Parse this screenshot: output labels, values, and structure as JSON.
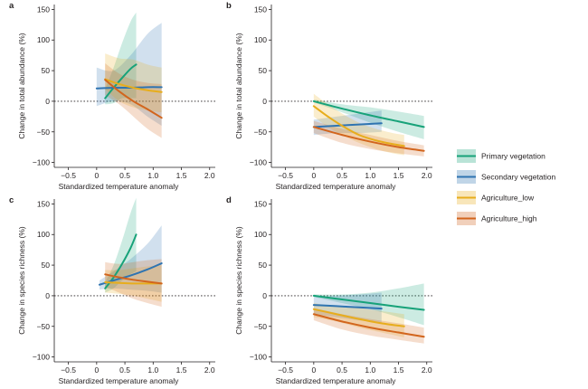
{
  "legend": {
    "items": [
      {
        "label": "Primary vegetation",
        "color": "#17a279"
      },
      {
        "label": "Secondary vegetation",
        "color": "#2f74b1"
      },
      {
        "label": "Agriculture_low",
        "color": "#e7ad1c"
      },
      {
        "label": "Agriculture_high",
        "color": "#d2651d"
      }
    ]
  },
  "chart_data": [
    {
      "panel": "a",
      "type": "line",
      "xlabel": "Standardized temperature anomaly",
      "ylabel": "Change in total abundance (%)",
      "xlim": [
        -0.75,
        2.1
      ],
      "ylim": [
        -108,
        158
      ],
      "xticks": [
        -0.5,
        0,
        0.5,
        1,
        1.5,
        2
      ],
      "xtick_labels": [
        "−0.5",
        "0",
        "0.5",
        "1.0",
        "1.5",
        "2.0"
      ],
      "yticks": [
        -100,
        -50,
        0,
        50,
        100,
        150
      ],
      "ytick_labels": [
        "−100",
        "−50",
        "0",
        "50",
        "100",
        "150"
      ],
      "show_y_tick_labels": true,
      "series": [
        {
          "name": "Primary vegetation",
          "color": "#17a279",
          "x": [
            0.15,
            0.3,
            0.45,
            0.6,
            0.7
          ],
          "y": [
            5,
            22,
            38,
            53,
            60
          ],
          "lower": [
            -5,
            -3,
            5,
            5,
            5
          ],
          "upper": [
            20,
            55,
            95,
            130,
            145
          ]
        },
        {
          "name": "Secondary vegetation",
          "color": "#2f74b1",
          "x": [
            0,
            0.3,
            0.6,
            0.9,
            1.15
          ],
          "y": [
            21,
            22,
            22,
            23,
            23
          ],
          "lower": [
            -8,
            0,
            -5,
            -25,
            -40
          ],
          "upper": [
            55,
            50,
            75,
            110,
            128
          ]
        },
        {
          "name": "Agriculture_low",
          "color": "#e7ad1c",
          "x": [
            0.15,
            0.4,
            0.65,
            0.9,
            1.15
          ],
          "y": [
            36,
            28,
            22,
            18,
            15
          ],
          "lower": [
            20,
            0,
            -10,
            -15,
            -18
          ],
          "upper": [
            78,
            70,
            68,
            60,
            55
          ]
        },
        {
          "name": "Agriculture_high",
          "color": "#d2651d",
          "x": [
            0.15,
            0.4,
            0.65,
            0.9,
            1.15
          ],
          "y": [
            35,
            16,
            0,
            -13,
            -27
          ],
          "lower": [
            10,
            -5,
            -25,
            -45,
            -60
          ],
          "upper": [
            62,
            45,
            35,
            30,
            28
          ]
        }
      ]
    },
    {
      "panel": "b",
      "type": "line",
      "xlabel": "Standardized temperature anomaly",
      "ylabel": "Change in total abundance (%)",
      "xlim": [
        -0.75,
        2.1
      ],
      "ylim": [
        -108,
        158
      ],
      "xticks": [
        -0.5,
        0,
        0.5,
        1,
        1.5,
        2
      ],
      "xtick_labels": [
        "−0.5",
        "0",
        "0.5",
        "1.0",
        "1.5",
        "2.0"
      ],
      "yticks": [
        -100,
        -50,
        0,
        50,
        100,
        150
      ],
      "ytick_labels": [
        "−100",
        "−50",
        "0",
        "50",
        "100",
        "150"
      ],
      "show_y_tick_labels": true,
      "series": [
        {
          "name": "Primary vegetation",
          "color": "#17a279",
          "x": [
            0,
            0.5,
            1.0,
            1.5,
            1.95
          ],
          "y": [
            0,
            -12,
            -23,
            -33,
            -42
          ],
          "lower": [
            -2,
            -18,
            -35,
            -50,
            -62
          ],
          "upper": [
            3,
            -5,
            -10,
            -17,
            -24
          ]
        },
        {
          "name": "Secondary vegetation",
          "color": "#2f74b1",
          "x": [
            0,
            0.4,
            0.8,
            1.2
          ],
          "y": [
            -42,
            -40,
            -38,
            -36
          ],
          "lower": [
            -55,
            -52,
            -52,
            -50
          ],
          "upper": [
            -30,
            -25,
            -20,
            -15
          ]
        },
        {
          "name": "Agriculture_low",
          "color": "#e7ad1c",
          "x": [
            0,
            0.25,
            0.5,
            0.8,
            1.1,
            1.4,
            1.6
          ],
          "y": [
            -8,
            -25,
            -40,
            -55,
            -64,
            -70,
            -73
          ],
          "lower": [
            -25,
            -42,
            -55,
            -68,
            -78,
            -85,
            -88
          ],
          "upper": [
            12,
            -5,
            -20,
            -35,
            -45,
            -52,
            -55
          ]
        },
        {
          "name": "Agriculture_high",
          "color": "#d2651d",
          "x": [
            0,
            0.5,
            1.0,
            1.5,
            1.95
          ],
          "y": [
            -42,
            -55,
            -66,
            -75,
            -81
          ],
          "lower": [
            -52,
            -68,
            -78,
            -85,
            -90
          ],
          "upper": [
            -32,
            -45,
            -55,
            -65,
            -72
          ]
        }
      ]
    },
    {
      "panel": "c",
      "type": "line",
      "xlabel": "Standardized temperature anomaly",
      "ylabel": "Change in species richness (%)",
      "xlim": [
        -0.75,
        2.1
      ],
      "ylim": [
        -108,
        158
      ],
      "xticks": [
        -0.5,
        0,
        0.5,
        1,
        1.5,
        2
      ],
      "xtick_labels": [
        "−0.5",
        "0",
        "0.5",
        "1.0",
        "1.5",
        "2.0"
      ],
      "yticks": [
        -100,
        -50,
        0,
        50,
        100,
        150
      ],
      "ytick_labels": [
        "−100",
        "−50",
        "0",
        "50",
        "100",
        "150"
      ],
      "show_y_tick_labels": true,
      "series": [
        {
          "name": "Primary vegetation",
          "color": "#17a279",
          "x": [
            0.15,
            0.3,
            0.45,
            0.6,
            0.7
          ],
          "y": [
            12,
            30,
            52,
            78,
            100
          ],
          "lower": [
            5,
            12,
            25,
            35,
            40
          ],
          "upper": [
            22,
            50,
            90,
            135,
            160
          ]
        },
        {
          "name": "Secondary vegetation",
          "color": "#2f74b1",
          "x": [
            0.05,
            0.3,
            0.6,
            0.9,
            1.15
          ],
          "y": [
            18,
            25,
            33,
            43,
            53
          ],
          "lower": [
            10,
            12,
            10,
            8,
            5
          ],
          "upper": [
            25,
            40,
            60,
            85,
            115
          ]
        },
        {
          "name": "Agriculture_low",
          "color": "#e7ad1c",
          "x": [
            0.15,
            0.4,
            0.65,
            0.9,
            1.15
          ],
          "y": [
            22,
            21,
            20,
            20,
            20
          ],
          "lower": [
            5,
            3,
            0,
            -5,
            -10
          ],
          "upper": [
            42,
            42,
            45,
            48,
            50
          ]
        },
        {
          "name": "Agriculture_high",
          "color": "#d2651d",
          "x": [
            0.15,
            0.4,
            0.65,
            0.9,
            1.15
          ],
          "y": [
            35,
            30,
            26,
            23,
            20
          ],
          "lower": [
            15,
            5,
            -5,
            -12,
            -18
          ],
          "upper": [
            55,
            52,
            55,
            58,
            60
          ]
        }
      ]
    },
    {
      "panel": "d",
      "type": "line",
      "xlabel": "Standardized temperature anomaly",
      "ylabel": "Change in species richness (%)",
      "xlim": [
        -0.75,
        2.1
      ],
      "ylim": [
        -108,
        158
      ],
      "xticks": [
        -0.5,
        0,
        0.5,
        1,
        1.5,
        2
      ],
      "xtick_labels": [
        "−0.5",
        "0",
        "0.5",
        "1.0",
        "1.5",
        "2.0"
      ],
      "yticks": [
        -100,
        -50,
        0,
        50,
        100,
        150
      ],
      "ytick_labels": [
        "−100",
        "−50",
        "0",
        "50",
        "100",
        "150"
      ],
      "show_y_tick_labels": true,
      "series": [
        {
          "name": "Primary vegetation",
          "color": "#17a279",
          "x": [
            0,
            0.5,
            1.0,
            1.5,
            1.95
          ],
          "y": [
            0,
            -6,
            -12,
            -18,
            -23
          ],
          "lower": [
            -2,
            -12,
            -22,
            -35,
            -48
          ],
          "upper": [
            2,
            2,
            5,
            12,
            20
          ]
        },
        {
          "name": "Secondary vegetation",
          "color": "#2f74b1",
          "x": [
            0,
            0.4,
            0.8,
            1.2
          ],
          "y": [
            -15,
            -17,
            -19,
            -21
          ],
          "lower": [
            -30,
            -35,
            -40,
            -45
          ],
          "upper": [
            -2,
            0,
            2,
            5
          ]
        },
        {
          "name": "Agriculture_low",
          "color": "#e7ad1c",
          "x": [
            0,
            0.4,
            0.8,
            1.2,
            1.6
          ],
          "y": [
            -22,
            -30,
            -38,
            -45,
            -50
          ],
          "lower": [
            -35,
            -42,
            -52,
            -60,
            -68
          ],
          "upper": [
            -12,
            -18,
            -20,
            -25,
            -30
          ]
        },
        {
          "name": "Agriculture_high",
          "color": "#d2651d",
          "x": [
            0,
            0.5,
            1.0,
            1.5,
            1.95
          ],
          "y": [
            -30,
            -42,
            -52,
            -60,
            -67
          ],
          "lower": [
            -40,
            -55,
            -65,
            -72,
            -78
          ],
          "upper": [
            -20,
            -30,
            -38,
            -45,
            -52
          ]
        }
      ]
    }
  ]
}
